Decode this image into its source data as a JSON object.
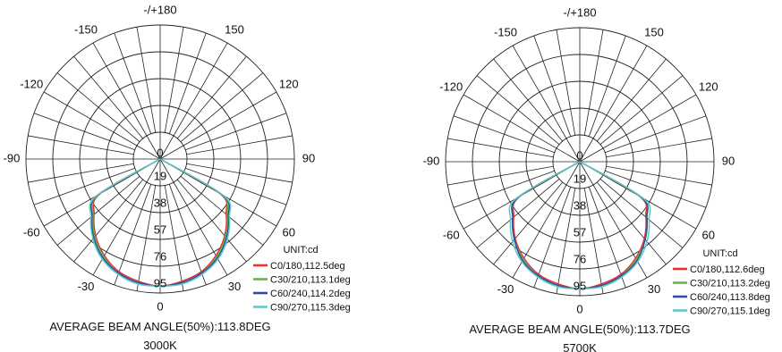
{
  "chart_data": [
    {
      "type": "polar",
      "title": "AVERAGE BEAM ANGLE(50%):113.8DEG",
      "subtitle": "3000K",
      "unit_label": "UNIT:cd",
      "angle_labels": [
        "-/+180",
        "150",
        "120",
        "90",
        "60",
        "30",
        "0",
        "-30",
        "-60",
        "-90",
        "-120",
        "-150"
      ],
      "radial_ticks": [
        "0",
        "19",
        "38",
        "57",
        "76",
        "95"
      ],
      "r_max": 95,
      "grid": true,
      "legend_position": "bottom-right",
      "series": [
        {
          "name": "C0/180,112.5deg",
          "color": "#e8312f",
          "angles": [
            -60,
            -50,
            -40,
            -30,
            -20,
            -10,
            0,
            10,
            20,
            30,
            40,
            50,
            60
          ],
          "values": [
            49,
            61,
            71,
            79,
            85,
            88,
            90,
            88,
            85,
            79,
            71,
            61,
            49
          ]
        },
        {
          "name": "C30/210,113.1deg",
          "color": "#5fb946",
          "angles": [
            -60,
            -50,
            -40,
            -30,
            -20,
            -10,
            0,
            10,
            20,
            30,
            40,
            50,
            60
          ],
          "values": [
            50,
            62,
            72,
            80,
            86,
            89,
            90,
            89,
            86,
            80,
            72,
            62,
            50
          ]
        },
        {
          "name": "C60/240,114.2deg",
          "color": "#2a4fa3",
          "angles": [
            -60,
            -50,
            -40,
            -30,
            -20,
            -10,
            0,
            10,
            20,
            30,
            40,
            50,
            60
          ],
          "values": [
            51,
            63,
            73,
            81,
            86,
            89,
            90,
            89,
            86,
            81,
            73,
            63,
            51
          ]
        },
        {
          "name": "C90/270,115.3deg",
          "color": "#62c9c9",
          "angles": [
            -60,
            -50,
            -40,
            -30,
            -20,
            -10,
            0,
            10,
            20,
            30,
            40,
            50,
            60
          ],
          "values": [
            52,
            64,
            74,
            82,
            87,
            90,
            90,
            90,
            87,
            82,
            74,
            64,
            52
          ]
        }
      ]
    },
    {
      "type": "polar",
      "title": "AVERAGE BEAM ANGLE(50%):113.7DEG",
      "subtitle": "5700K",
      "unit_label": "UNIT:cd",
      "angle_labels": [
        "-/+180",
        "150",
        "120",
        "90",
        "60",
        "30",
        "0",
        "-30",
        "-60",
        "-90",
        "-120",
        "-150"
      ],
      "radial_ticks": [
        "0",
        "19",
        "38",
        "57",
        "76",
        "95"
      ],
      "r_max": 95,
      "grid": true,
      "legend_position": "bottom-right",
      "series": [
        {
          "name": "C0/180,112.6deg",
          "color": "#e8312f",
          "angles": [
            -60,
            -50,
            -40,
            -30,
            -20,
            -10,
            0,
            10,
            20,
            30,
            40,
            50,
            60
          ],
          "values": [
            49,
            61,
            71,
            79,
            85,
            88,
            90,
            88,
            85,
            79,
            71,
            61,
            49
          ]
        },
        {
          "name": "C30/210,113.2deg",
          "color": "#5fb946",
          "angles": [
            -60,
            -50,
            -40,
            -30,
            -20,
            -10,
            0,
            10,
            20,
            30,
            40,
            50,
            60
          ],
          "values": [
            50,
            62,
            72,
            80,
            86,
            89,
            90,
            89,
            86,
            80,
            72,
            62,
            50
          ]
        },
        {
          "name": "C60/240,113.8deg",
          "color": "#2a4fa3",
          "angles": [
            -60,
            -50,
            -40,
            -30,
            -20,
            -10,
            0,
            10,
            20,
            30,
            40,
            50,
            60
          ],
          "values": [
            50,
            62,
            72,
            81,
            86,
            89,
            90,
            89,
            86,
            81,
            72,
            62,
            50
          ]
        },
        {
          "name": "C90/270,115.1deg",
          "color": "#62c9c9",
          "angles": [
            -60,
            -50,
            -40,
            -30,
            -20,
            -10,
            0,
            10,
            20,
            30,
            40,
            50,
            60
          ],
          "values": [
            52,
            64,
            74,
            82,
            87,
            90,
            90,
            90,
            87,
            82,
            74,
            64,
            52
          ]
        }
      ]
    }
  ]
}
